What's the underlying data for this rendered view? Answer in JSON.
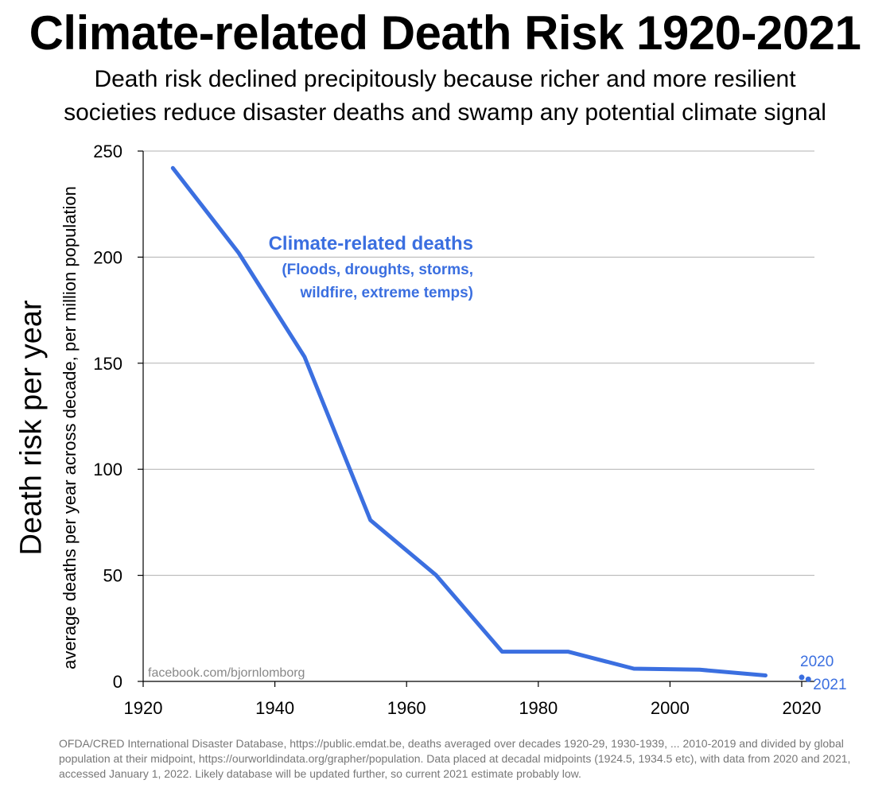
{
  "title": "Climate-related Death Risk 1920-2021",
  "subtitle_line1": "Death risk declined precipitously because richer and more resilient",
  "subtitle_line2": "societies reduce disaster deaths and swamp any potential climate signal",
  "watermark": "facebook.com/bjornlomborg",
  "footnote": "OFDA/CRED International Disaster Database, https://public.emdat.be, deaths averaged over decades 1920-29, 1930-1939, ... 2010-2019 and divided by global population at their midpoint, https://ourworldindata.org/grapher/population. Data placed at decadal midpoints (1924.5, 1934.5 etc), with data from 2020 and 2021, accessed January 1, 2022. Likely database will be updated further, so current 2021 estimate probably low.",
  "colors": {
    "series": "#3b6fe0",
    "grid": "#b0b0b0",
    "axis": "#000000",
    "footnote": "#777777"
  },
  "chart_data": {
    "type": "line",
    "title": "Climate-related Death Risk 1920-2021",
    "ylabel": "Death risk per year",
    "ylabel_secondary": "average deaths per year across decade, per million population",
    "xlabel": "",
    "xlim": [
      1920,
      2023
    ],
    "ylim": [
      0,
      250
    ],
    "x_ticks": [
      1920,
      1940,
      1960,
      1980,
      2000,
      2020
    ],
    "y_ticks": [
      0,
      50,
      100,
      150,
      200,
      250
    ],
    "grid": "horizontal",
    "series": [
      {
        "name": "Climate-related deaths",
        "annotation_line1": "(Floods, droughts, storms,",
        "annotation_line2": "wildfire, extreme temps)",
        "x": [
          1924.5,
          1934.5,
          1944.5,
          1954.5,
          1964.5,
          1974.5,
          1984.5,
          1994.5,
          2004.5,
          2014.5
        ],
        "y": [
          242,
          202,
          153,
          76,
          50,
          14,
          14,
          6,
          5.5,
          2.8
        ]
      }
    ],
    "points": [
      {
        "label": "2020",
        "x": 2020,
        "y": 1.9
      },
      {
        "label": "2021",
        "x": 2021,
        "y": 1.0
      }
    ]
  }
}
